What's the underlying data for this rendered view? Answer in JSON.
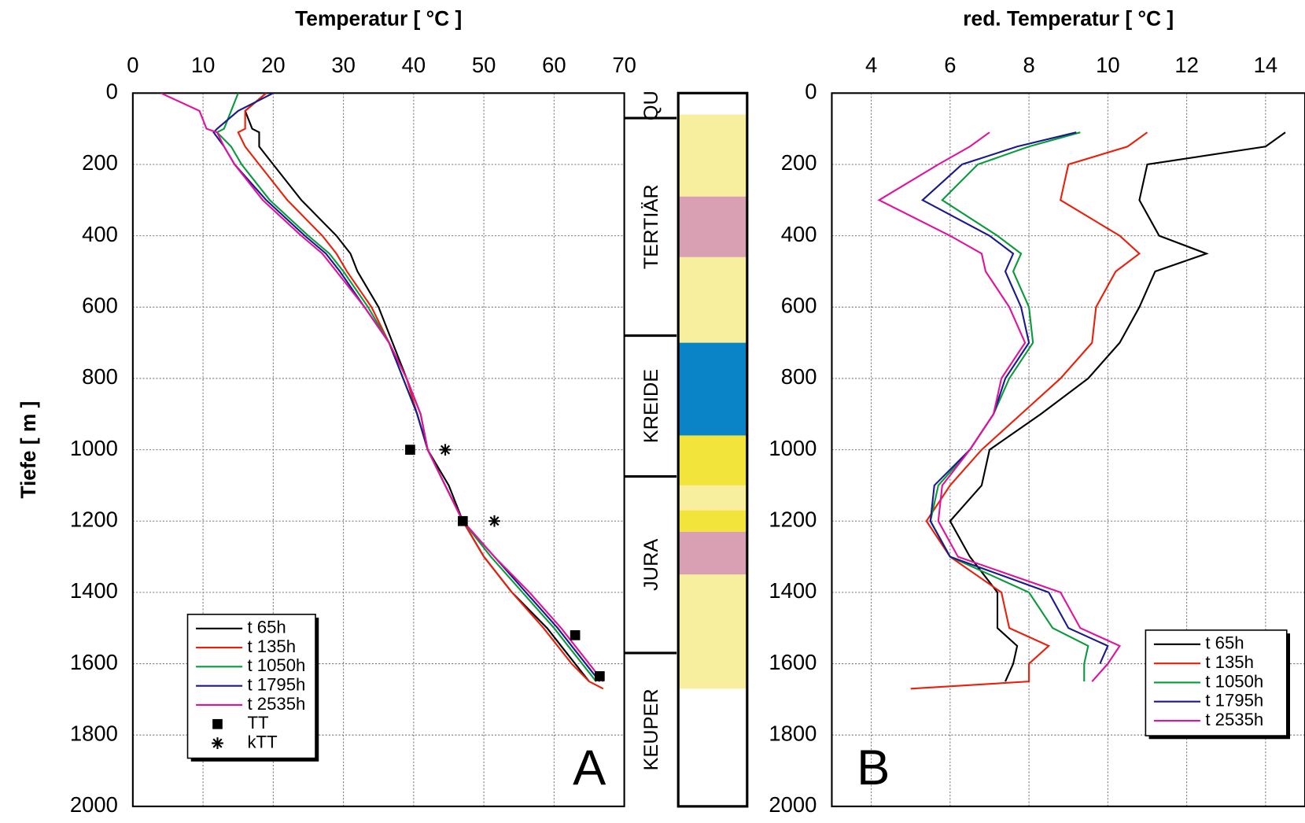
{
  "chart_data": [
    {
      "type": "line",
      "title": "Temperatur [ °C ]",
      "y_label": "Tiefe [ m ]",
      "label": "A",
      "xlim": [
        0,
        70
      ],
      "xticks": [
        0,
        10,
        20,
        30,
        40,
        50,
        60,
        70
      ],
      "ylim": [
        0,
        2000
      ],
      "yticks": [
        0,
        200,
        400,
        600,
        800,
        1000,
        1200,
        1400,
        1600,
        1800,
        2000
      ],
      "y_inverted": true,
      "grid": true,
      "legend": "lower left",
      "depth": [
        0,
        50,
        100,
        110,
        150,
        200,
        300,
        400,
        450,
        500,
        600,
        700,
        800,
        900,
        1000,
        1100,
        1200,
        1300,
        1400,
        1500,
        1550,
        1600,
        1650,
        1670
      ],
      "series": [
        {
          "name": "t 65h",
          "color": "#000000",
          "values": [
            19,
            16,
            17,
            18,
            18,
            20,
            24,
            29,
            31,
            32,
            35,
            37,
            39,
            41,
            42,
            45,
            47,
            50,
            54,
            59,
            61,
            63,
            65,
            null
          ]
        },
        {
          "name": "t 135h",
          "color": "#e8200c",
          "values": [
            19,
            16,
            16,
            15,
            16,
            18,
            22,
            27,
            29,
            30.5,
            34,
            36.5,
            39,
            40.5,
            42,
            44.5,
            47,
            50,
            54,
            58.5,
            60.5,
            62.5,
            65,
            67
          ]
        },
        {
          "name": "t 1050h",
          "color": "#0a9a3c",
          "values": [
            15,
            14,
            13,
            12,
            14,
            15.5,
            19.5,
            25,
            28,
            30,
            33.5,
            36.5,
            38.5,
            40.5,
            42,
            44.5,
            47,
            51,
            55.5,
            60,
            62,
            64,
            66,
            null
          ]
        },
        {
          "name": "t 1795h",
          "color": "#1a1a8c",
          "values": [
            20,
            15,
            12,
            11.5,
            13,
            14.5,
            19,
            24.5,
            27.5,
            29.5,
            33,
            36.5,
            38.5,
            40.5,
            42,
            44.5,
            47,
            51.5,
            56,
            60.5,
            62.5,
            64.5,
            66.5,
            null
          ]
        },
        {
          "name": "t 2535h",
          "color": "#e0139c",
          "values": [
            4,
            9.5,
            10.5,
            12,
            13,
            14.5,
            18.5,
            24,
            27,
            29,
            33,
            36.5,
            39,
            41,
            42,
            44.5,
            47,
            51.5,
            56.5,
            61,
            63,
            65,
            67,
            null
          ]
        },
        {
          "name": "TT",
          "color": "#000000",
          "marker": "square",
          "depth": [
            1000,
            1200,
            1520,
            1635
          ],
          "values": [
            39.5,
            47,
            63,
            66.5
          ]
        },
        {
          "name": "kTT",
          "color": "#000000",
          "marker": "star",
          "depth": [
            1000,
            1200
          ],
          "values": [
            44.5,
            51.5
          ]
        }
      ]
    },
    {
      "type": "line",
      "title": "red. Temperatur [ °C ]",
      "label": "B",
      "xlim": [
        3,
        15
      ],
      "xticks": [
        4,
        6,
        8,
        10,
        12,
        14
      ],
      "ylim": [
        0,
        2000
      ],
      "yticks": [
        0,
        200,
        400,
        600,
        800,
        1000,
        1200,
        1400,
        1600,
        1800,
        2000
      ],
      "y_inverted": true,
      "grid": true,
      "legend": "lower right",
      "depth": [
        110,
        150,
        200,
        300,
        400,
        450,
        500,
        600,
        700,
        800,
        900,
        1000,
        1100,
        1200,
        1300,
        1400,
        1500,
        1550,
        1600,
        1650,
        1670
      ],
      "series": [
        {
          "name": "t 65h",
          "color": "#000000",
          "values": [
            14.5,
            14,
            11,
            10.8,
            11.3,
            12.5,
            11.2,
            10.8,
            10.3,
            9.5,
            8.3,
            7,
            6.8,
            6,
            6.5,
            7.2,
            7.2,
            7.7,
            7.6,
            7.4,
            null
          ]
        },
        {
          "name": "t 135h",
          "color": "#e8200c",
          "values": [
            11,
            10.5,
            9,
            8.8,
            10.3,
            10.8,
            10.2,
            9.7,
            9.6,
            8.8,
            7.8,
            6.8,
            6,
            5.4,
            6,
            7.3,
            7.5,
            8.5,
            8,
            8,
            5
          ]
        },
        {
          "name": "t 1050h",
          "color": "#0a9a3c",
          "values": [
            9.3,
            8,
            6.7,
            5.8,
            7.2,
            7.8,
            7.6,
            8,
            8.1,
            7.5,
            7.1,
            6.5,
            5.7,
            5.5,
            6,
            8,
            8.6,
            9.5,
            9.4,
            9.4,
            null
          ]
        },
        {
          "name": "t 1795h",
          "color": "#1a1a8c",
          "values": [
            9.2,
            7.7,
            6.3,
            5.3,
            7,
            7.6,
            7.4,
            7.8,
            8,
            7.4,
            7.1,
            6.5,
            5.6,
            5.5,
            6,
            8.5,
            9,
            10,
            9.8,
            null,
            null
          ]
        },
        {
          "name": "t 2535h",
          "color": "#e0139c",
          "values": [
            7,
            6.5,
            5.7,
            4.2,
            6,
            6.8,
            6.9,
            7.5,
            7.9,
            7.3,
            7.1,
            6.5,
            5.8,
            5.7,
            6.2,
            8.8,
            9.3,
            10.3,
            10,
            9.6,
            null
          ]
        }
      ]
    }
  ],
  "strata": {
    "formations": [
      {
        "label": "QU",
        "top": 0,
        "bottom": 70
      },
      {
        "label": "TERTIÄR",
        "top": 70,
        "bottom": 680
      },
      {
        "label": "KREIDE",
        "top": 680,
        "bottom": 1075
      },
      {
        "label": "JURA",
        "top": 1075,
        "bottom": 1570
      },
      {
        "label": "KEUPER",
        "top": 1570,
        "bottom": 2000
      }
    ],
    "layers": [
      {
        "top": 60,
        "bottom": 290,
        "color": "#f7ef9e"
      },
      {
        "top": 290,
        "bottom": 460,
        "color": "#d9a0b4"
      },
      {
        "top": 460,
        "bottom": 700,
        "color": "#f7ef9e"
      },
      {
        "top": 700,
        "bottom": 960,
        "color": "#0a84c6"
      },
      {
        "top": 960,
        "bottom": 1100,
        "color": "#f2e43a"
      },
      {
        "top": 1100,
        "bottom": 1170,
        "color": "#f7ef9e"
      },
      {
        "top": 1170,
        "bottom": 1230,
        "color": "#f2e43a"
      },
      {
        "top": 1230,
        "bottom": 1350,
        "color": "#d9a0b4"
      },
      {
        "top": 1350,
        "bottom": 1670,
        "color": "#f7ef9e"
      }
    ]
  }
}
